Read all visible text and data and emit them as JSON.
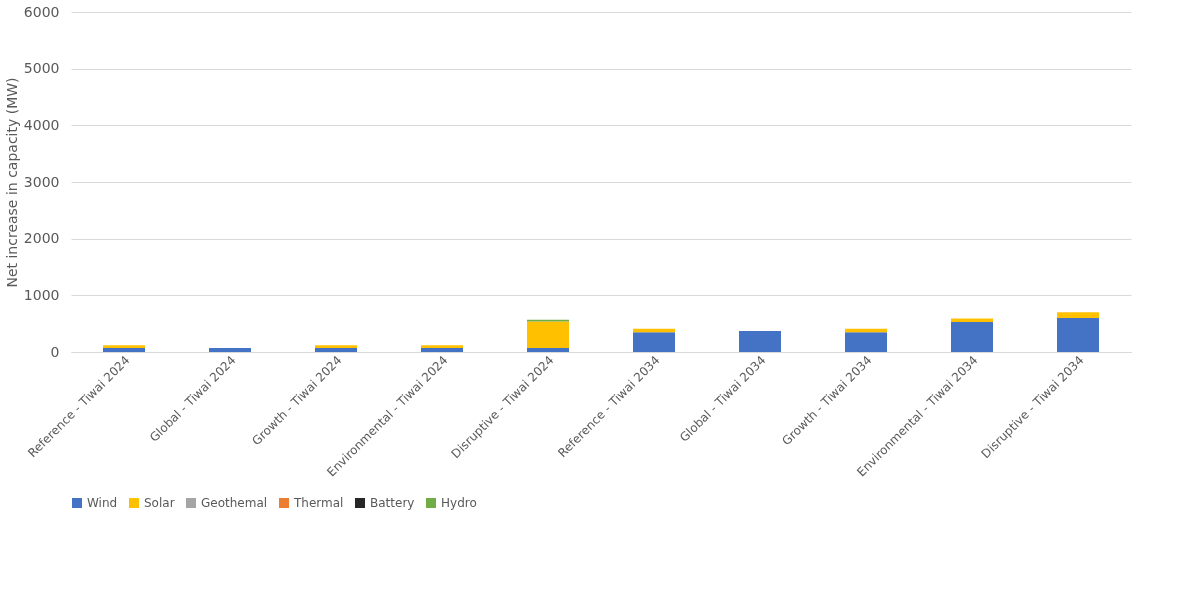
{
  "chart_data": {
    "type": "bar",
    "stacked": true,
    "ylabel": "Net increase in capacity (MW)",
    "categories": [
      "Reference - Tiwai 2024",
      "Global - Tiwai  2024",
      "Growth - Tiwai 2024",
      "Environmental - Tiwai 2024",
      "Disruptive - Tiwai 2024",
      "Reference - Tiwai 2034",
      "Global - Tiwai 2034",
      "Growth - Tiwai 2034",
      "Environmental - Tiwai 2034",
      "Disruptive - Tiwai 2034"
    ],
    "series": [
      {
        "name": "Wind",
        "color": "#4472c4",
        "values": [
          70,
          70,
          70,
          70,
          70,
          350,
          370,
          350,
          530,
          600
        ]
      },
      {
        "name": "Solar",
        "color": "#ffc000",
        "values": [
          50,
          0,
          50,
          50,
          470,
          60,
          0,
          60,
          60,
          100
        ]
      },
      {
        "name": "Geothemal",
        "color": "#a5a5a5",
        "values": [
          0,
          0,
          0,
          0,
          0,
          0,
          0,
          0,
          0,
          0
        ]
      },
      {
        "name": "Thermal",
        "color": "#ed7d31",
        "values": [
          0,
          0,
          0,
          0,
          0,
          0,
          0,
          0,
          0,
          0
        ]
      },
      {
        "name": "Battery",
        "color": "#262626",
        "values": [
          0,
          0,
          0,
          0,
          0,
          0,
          0,
          0,
          0,
          0
        ]
      },
      {
        "name": "Hydro",
        "color": "#70ad47",
        "values": [
          0,
          0,
          0,
          0,
          30,
          0,
          0,
          0,
          0,
          0
        ]
      }
    ],
    "ylim": [
      0,
      6000
    ],
    "yticks": [
      0,
      1000,
      2000,
      3000,
      4000,
      5000,
      6000
    ],
    "grid": "y",
    "legend": "bottom"
  }
}
